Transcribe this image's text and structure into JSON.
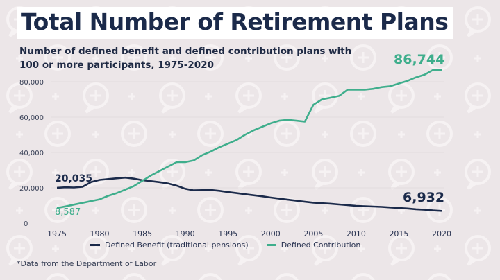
{
  "header": {
    "title": "Total Number of Retirement Plans",
    "subtitle": "Number of defined benefit and defined contribution plans with 100 or more participants, 1975-2020"
  },
  "legend": {
    "db_label": "Defined Benefit (traditional pensions)",
    "dc_label": "Defined Contribution"
  },
  "footnote": "*Data from the Department of Labor",
  "colors": {
    "defined_benefit": "#1b2a4a",
    "defined_contribution": "#3fae8c",
    "background": "#ece6e8",
    "title_box": "#ffffff"
  },
  "annotations": {
    "db_start": "20,035",
    "db_end": "6,932",
    "dc_start": "8,587",
    "dc_end": "86,744"
  },
  "chart_data": {
    "type": "line",
    "title": "Total Number of Retirement Plans",
    "subtitle": "Number of defined benefit and defined contribution plans with 100 or more participants, 1975-2020",
    "xlabel": "",
    "ylabel": "",
    "xlim": [
      1975,
      2020
    ],
    "ylim": [
      0,
      80000
    ],
    "x_ticks": [
      1975,
      1980,
      1985,
      1990,
      1995,
      2000,
      2005,
      2010,
      2015,
      2020
    ],
    "y_ticks": [
      "0",
      "20,000",
      "40,000",
      "60,000",
      "80,000"
    ],
    "grid": true,
    "legend_position": "bottom",
    "series": [
      {
        "name": "Defined Benefit (traditional pensions)",
        "color": "#1b2a4a",
        "x": [
          1975,
          1976,
          1977,
          1978,
          1979,
          1980,
          1981,
          1982,
          1983,
          1984,
          1985,
          1986,
          1987,
          1988,
          1989,
          1990,
          1991,
          1992,
          1993,
          1994,
          1995,
          1996,
          1997,
          1998,
          1999,
          2000,
          2001,
          2002,
          2003,
          2004,
          2005,
          2006,
          2007,
          2008,
          2009,
          2010,
          2011,
          2012,
          2013,
          2014,
          2015,
          2016,
          2017,
          2018,
          2019,
          2020
        ],
        "values": [
          20035,
          20300,
          20200,
          20600,
          23300,
          24500,
          25000,
          25400,
          25800,
          25200,
          24300,
          23800,
          23200,
          22500,
          21200,
          19500,
          18600,
          18700,
          18800,
          18300,
          17600,
          17000,
          16400,
          15800,
          15200,
          14500,
          13900,
          13300,
          12700,
          12100,
          11600,
          11300,
          11000,
          10600,
          10200,
          9800,
          9600,
          9400,
          9200,
          8900,
          8600,
          8300,
          7900,
          7600,
          7200,
          6932
        ]
      },
      {
        "name": "Defined Contribution",
        "color": "#3fae8c",
        "x": [
          1975,
          1976,
          1977,
          1978,
          1979,
          1980,
          1981,
          1982,
          1983,
          1984,
          1985,
          1986,
          1987,
          1988,
          1989,
          1990,
          1991,
          1992,
          1993,
          1994,
          1995,
          1996,
          1997,
          1998,
          1999,
          2000,
          2001,
          2002,
          2003,
          2004,
          2005,
          2006,
          2007,
          2008,
          2009,
          2010,
          2011,
          2012,
          2013,
          2014,
          2015,
          2016,
          2017,
          2018,
          2019,
          2020
        ],
        "values": [
          8587,
          9500,
          10500,
          11500,
          12500,
          13500,
          15500,
          17000,
          19000,
          21000,
          24000,
          27000,
          29500,
          32000,
          34500,
          34500,
          35500,
          38500,
          40500,
          43000,
          45000,
          47000,
          50000,
          52500,
          54500,
          56500,
          58000,
          58500,
          58000,
          57500,
          67000,
          70000,
          71000,
          72000,
          75500,
          75500,
          75500,
          76000,
          77000,
          77500,
          79000,
          80500,
          82500,
          84000,
          86700,
          86744
        ]
      }
    ]
  }
}
